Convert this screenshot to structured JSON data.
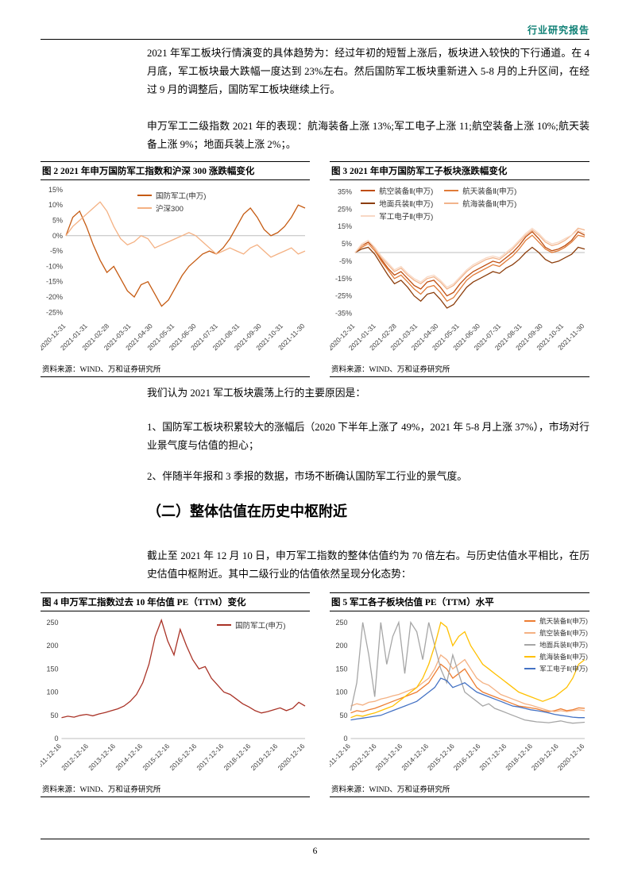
{
  "header": {
    "title": "行业研究报告",
    "accent_color": "#0d7f74"
  },
  "paragraphs": {
    "p1": "2021 年军工板块行情演变的具体趋势为：经过年初的短暂上涨后，板块进入较快的下行通道。在 4 月底，军工板块最大跌幅一度达到 23%左右。然后国防军工板块重新进入 5-8 月的上升区间，在经过 9 月的调整后，国防军工板块继续上行。",
    "p2": "申万军工二级指数 2021 年的表现：航海装备上涨 13%;军工电子上涨 11;航空装备上涨 10%;航天装备上涨 9%；地面兵装上涨 2%；。",
    "p3": "我们认为 2021 军工板块震荡上行的主要原因是：",
    "p4": "1、国防军工板块积累较大的涨幅后（2020 下半年上涨了 49%，2021 年 5-8 月上涨 37%），市场对行业景气度与估值的担心；",
    "p5": "2、伴随半年报和 3 季报的数据，市场不断确认国防军工行业的景气度。",
    "p6": "截止至 2021 年 12 月 10 日，申万军工指数的整体估值约为 70 倍左右。与历史估值水平相比，在历史估值中枢附近。其中二级行业的估值依然呈现分化态势："
  },
  "section_heading": "（二）整体估值在历史中枢附近",
  "figures": [
    {
      "title": "图 2  2021 年申万国防军工指数和沪深 300 涨跌幅变化",
      "source": "资料来源：WIND、万和证券研究所"
    },
    {
      "title": "图 3  2021 年申万国防军工子板块涨跌幅变化",
      "source": "资料来源：WIND、万和证券研究所"
    },
    {
      "title": "图 4  申万军工指数过去 10 年估值 PE（TTM）变化",
      "source": "资料来源：WIND、万和证券研究所"
    },
    {
      "title": "图 5  军工各子板块估值 PE（TTM）水平",
      "source": "资料来源：WIND、万和证券研究所"
    }
  ],
  "page_number": "6",
  "chart_data": [
    {
      "type": "line",
      "title": "2021 年申万国防军工指数和沪深 300 涨跌幅变化",
      "xlabel": "",
      "ylabel": "",
      "ylim": [
        -27,
        16
      ],
      "ytick_values": [
        15,
        10,
        5,
        0,
        -5,
        -10,
        -15,
        -20,
        -25
      ],
      "ytick_labels": [
        "15%",
        "10%",
        "5%",
        "0%",
        "-5%",
        "-10%",
        "-15%",
        "-20%",
        "-25%"
      ],
      "x_labels": [
        "2020-12-31",
        "2021-01-31",
        "2021-02-28",
        "2021-03-31",
        "2021-04-30",
        "2021-05-31",
        "2021-06-30",
        "2021-07-31",
        "2021-08-31",
        "2021-09-30",
        "2021-10-31",
        "2021-11-30"
      ],
      "legend_position": "top-center",
      "grid": false,
      "series": [
        {
          "name": "国防军工(申万)",
          "color": "#C55A11",
          "values": [
            0,
            6,
            8,
            3,
            -3,
            -8,
            -12,
            -10,
            -14,
            -18,
            -20,
            -16,
            -15,
            -19,
            -23,
            -21,
            -17,
            -13,
            -10,
            -8,
            -6,
            -5,
            -6,
            -4,
            -1,
            3,
            7,
            9,
            6,
            2,
            0,
            1,
            3,
            6,
            10,
            9
          ]
        },
        {
          "name": "沪深300",
          "color": "#F4B183",
          "values": [
            0,
            3,
            5,
            7,
            9,
            11,
            8,
            3,
            -1,
            -3,
            -2,
            0,
            -1,
            -4,
            -3,
            -2,
            -1,
            0,
            1,
            0,
            -2,
            -4,
            -6,
            -5,
            -4,
            -5,
            -6,
            -4,
            -3,
            -5,
            -7,
            -6,
            -5,
            -4,
            -6,
            -5
          ]
        }
      ]
    },
    {
      "type": "line",
      "title": "2021 年申万国防军工子板块涨跌幅变化",
      "xlabel": "",
      "ylabel": "",
      "ylim": [
        -38,
        38
      ],
      "ytick_values": [
        35,
        25,
        15,
        5,
        -5,
        -15,
        -25,
        -35
      ],
      "ytick_labels": [
        "35%",
        "25%",
        "15%",
        "5%",
        "-5%",
        "-15%",
        "-25%",
        "-35%"
      ],
      "x_labels": [
        "2020-12-31",
        "2021-01-31",
        "2021-02-28",
        "2021-03-31",
        "2021-04-30",
        "2021-05-31",
        "2021-06-30",
        "2021-07-31",
        "2021-08-31",
        "2021-09-30",
        "2021-10-31",
        "2021-11-30"
      ],
      "legend_position": "top-grid",
      "grid": false,
      "series": [
        {
          "name": "航空装备Ⅱ(申万)",
          "color": "#BF4D0E",
          "values": [
            0,
            4,
            6,
            2,
            -4,
            -9,
            -13,
            -11,
            -15,
            -19,
            -21,
            -17,
            -16,
            -20,
            -25,
            -23,
            -18,
            -14,
            -11,
            -9,
            -7,
            -5,
            -6,
            -3,
            0,
            4,
            9,
            12,
            8,
            3,
            1,
            2,
            4,
            7,
            12,
            10
          ]
        },
        {
          "name": "航天装备Ⅱ(申万)",
          "color": "#E07B39",
          "values": [
            0,
            3,
            5,
            1,
            -5,
            -10,
            -15,
            -13,
            -17,
            -21,
            -24,
            -20,
            -19,
            -23,
            -28,
            -26,
            -21,
            -16,
            -13,
            -11,
            -9,
            -7,
            -8,
            -5,
            -2,
            2,
            7,
            10,
            6,
            2,
            0,
            1,
            3,
            6,
            10,
            9
          ]
        },
        {
          "name": "地面兵装Ⅱ(申万)",
          "color": "#8C3D0B",
          "values": [
            0,
            2,
            3,
            -1,
            -7,
            -13,
            -18,
            -16,
            -20,
            -25,
            -28,
            -24,
            -23,
            -27,
            -32,
            -30,
            -25,
            -20,
            -17,
            -15,
            -13,
            -11,
            -12,
            -9,
            -7,
            -4,
            0,
            3,
            0,
            -4,
            -6,
            -5,
            -3,
            -1,
            3,
            2
          ]
        },
        {
          "name": "航海装备Ⅱ(申万)",
          "color": "#F2B48C",
          "values": [
            0,
            4,
            5,
            2,
            -3,
            -7,
            -11,
            -9,
            -13,
            -16,
            -18,
            -15,
            -14,
            -17,
            -21,
            -19,
            -15,
            -11,
            -8,
            -6,
            -4,
            -3,
            -4,
            -1,
            2,
            6,
            10,
            13,
            10,
            6,
            4,
            5,
            7,
            10,
            14,
            13
          ]
        },
        {
          "name": "军工电子Ⅱ(申万)",
          "color": "#F8D8C4",
          "values": [
            0,
            5,
            7,
            3,
            -2,
            -6,
            -10,
            -8,
            -12,
            -15,
            -17,
            -14,
            -13,
            -16,
            -20,
            -18,
            -14,
            -10,
            -7,
            -5,
            -3,
            -2,
            -3,
            0,
            3,
            7,
            11,
            14,
            11,
            7,
            5,
            6,
            8,
            10,
            13,
            11
          ]
        }
      ]
    },
    {
      "type": "line",
      "title": "申万军工指数过去 10 年估值 PE（TTM）变化",
      "xlabel": "",
      "ylabel": "",
      "ylim": [
        0,
        260
      ],
      "ytick_values": [
        250,
        200,
        150,
        100,
        50,
        0
      ],
      "ytick_labels": [
        "250",
        "200",
        "150",
        "100",
        "50",
        "0"
      ],
      "x_labels": [
        "2011-12-16",
        "2012-12-16",
        "2013-12-16",
        "2014-12-16",
        "2015-12-16",
        "2016-12-16",
        "2017-12-16",
        "2018-12-16",
        "2019-12-16",
        "2020-12-16"
      ],
      "legend_position": "top-right",
      "grid": false,
      "series": [
        {
          "name": "国防军工(申万)",
          "color": "#A93226",
          "values": [
            45,
            48,
            46,
            50,
            52,
            49,
            53,
            56,
            60,
            64,
            70,
            80,
            95,
            120,
            160,
            220,
            255,
            210,
            180,
            235,
            200,
            170,
            150,
            155,
            130,
            115,
            100,
            95,
            85,
            75,
            68,
            60,
            55,
            58,
            62,
            66,
            60,
            65,
            78,
            70
          ]
        }
      ]
    },
    {
      "type": "line",
      "title": "军工各子板块估值 PE（TTM）水平",
      "xlabel": "",
      "ylabel": "",
      "ylim": [
        0,
        260
      ],
      "ytick_values": [
        250,
        200,
        150,
        100,
        50,
        0
      ],
      "ytick_labels": [
        "250",
        "200",
        "150",
        "100",
        "50",
        "0"
      ],
      "x_labels": [
        "2011-12-16",
        "2012-12-16",
        "2013-12-16",
        "2014-12-16",
        "2015-12-16",
        "2016-12-16",
        "2017-12-16",
        "2018-12-16",
        "2019-12-16",
        "2020-12-16"
      ],
      "legend_position": "right",
      "grid": false,
      "series": [
        {
          "name": "航天装备Ⅱ(申万)",
          "color": "#ED7D31",
          "values": [
            55,
            60,
            58,
            62,
            65,
            70,
            75,
            80,
            85,
            90,
            95,
            100,
            110,
            120,
            140,
            160,
            150,
            130,
            140,
            150,
            130,
            110,
            100,
            95,
            90,
            85,
            80,
            75,
            70,
            68,
            66,
            64,
            60,
            58,
            60,
            64,
            60,
            62,
            66,
            65
          ]
        },
        {
          "name": "航空装备Ⅱ(申万)",
          "color": "#F4B183",
          "values": [
            70,
            75,
            72,
            78,
            80,
            85,
            88,
            92,
            95,
            100,
            105,
            110,
            120,
            130,
            150,
            180,
            170,
            150,
            160,
            170,
            150,
            130,
            120,
            115,
            105,
            95,
            90,
            85,
            80,
            75,
            72,
            68,
            64,
            60,
            58,
            60,
            58,
            60,
            62,
            60
          ]
        },
        {
          "name": "地面兵装Ⅱ(申万)",
          "color": "#A6A6A6",
          "values": [
            60,
            120,
            250,
            180,
            90,
            250,
            160,
            220,
            250,
            140,
            250,
            230,
            170,
            250,
            200,
            150,
            120,
            180,
            140,
            100,
            90,
            80,
            70,
            75,
            65,
            60,
            55,
            50,
            45,
            40,
            38,
            36,
            35,
            34,
            36,
            38,
            35,
            33,
            34,
            35
          ]
        },
        {
          "name": "航海装备Ⅱ(申万)",
          "color": "#FFC000",
          "values": [
            45,
            50,
            48,
            52,
            55,
            60,
            65,
            70,
            80,
            90,
            100,
            110,
            130,
            160,
            200,
            250,
            240,
            200,
            220,
            230,
            200,
            180,
            160,
            150,
            140,
            130,
            120,
            110,
            100,
            95,
            90,
            85,
            80,
            85,
            90,
            100,
            110,
            130,
            160,
            170
          ]
        },
        {
          "name": "军工电子Ⅱ(申万)",
          "color": "#4472C4",
          "values": [
            40,
            42,
            44,
            46,
            48,
            50,
            55,
            60,
            65,
            70,
            75,
            80,
            90,
            100,
            110,
            130,
            125,
            110,
            115,
            120,
            110,
            100,
            95,
            90,
            85,
            80,
            75,
            70,
            68,
            65,
            62,
            60,
            58,
            55,
            52,
            50,
            48,
            46,
            45,
            45
          ]
        }
      ]
    }
  ]
}
